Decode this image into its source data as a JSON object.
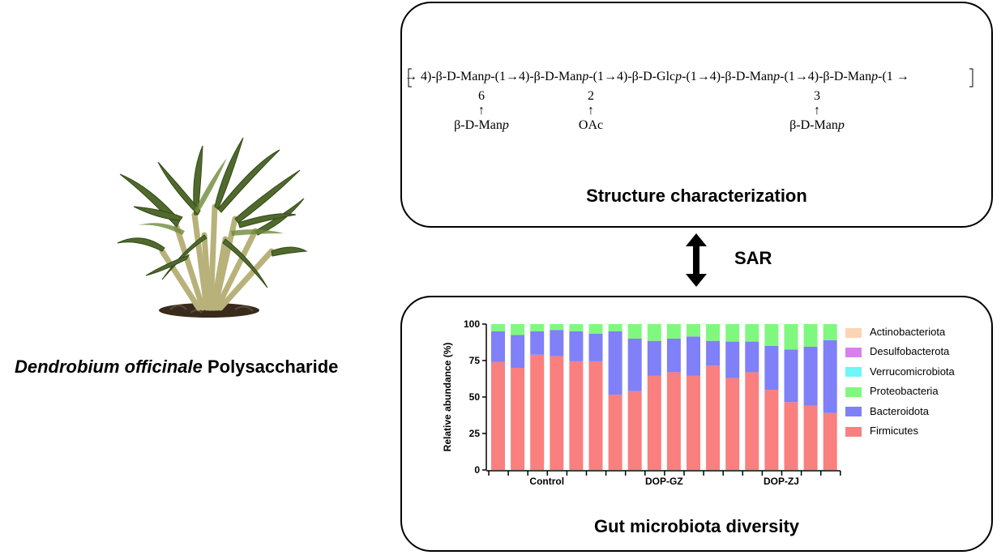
{
  "plant_caption": {
    "italic": "Dendrobium officinale",
    "rest": " Polysaccharide"
  },
  "sar_label": "SAR",
  "structure": {
    "title": "Structure characterization",
    "formula_parts": [
      {
        "t": "→ 4)-β-D-Man",
        "i": false
      },
      {
        "t": "p",
        "i": true
      },
      {
        "t": "-(1→4)-β-D-Man",
        "i": false
      },
      {
        "t": "p",
        "i": true
      },
      {
        "t": "-(1→4)-β-D-Glc",
        "i": false
      },
      {
        "t": "p",
        "i": true
      },
      {
        "t": "-(1→4)-β-D-Man",
        "i": false
      },
      {
        "t": "p",
        "i": true
      },
      {
        "t": "-(1→4)-β-D-Man",
        "i": false
      },
      {
        "t": "p",
        "i": true
      },
      {
        "t": "-(1 →",
        "i": false
      }
    ],
    "substituents": [
      {
        "position": "6",
        "arrow": "↑",
        "group": "β-D-Man",
        "group_italic": "p"
      },
      {
        "position": "2",
        "arrow": "↑",
        "group": "OAc",
        "group_italic": ""
      },
      {
        "position": "3",
        "arrow": "↑",
        "group": "β-D-Man",
        "group_italic": "p"
      }
    ]
  },
  "gut": {
    "title": "Gut microbiota diversity"
  },
  "colors": {
    "Actinobacteriota": "#fcd5b5",
    "Desulfobacterota": "#d980f0",
    "Verrucomicrobiota": "#6ff6f6",
    "Proteobacteria": "#80f880",
    "Bacteroidota": "#8080f8",
    "Firmicutes": "#fa7f7f"
  },
  "chart_data": {
    "type": "bar",
    "stacked": true,
    "ylabel": "Relative abundance (%)",
    "ylim": [
      0,
      100
    ],
    "yticks": [
      0,
      25,
      50,
      75,
      100
    ],
    "groups": [
      {
        "label": "Control",
        "bars": 6
      },
      {
        "label": "DOP-GZ",
        "bars": 6
      },
      {
        "label": "DOP-ZJ",
        "bars": 6
      }
    ],
    "series": [
      {
        "name": "Firmicutes",
        "values": [
          74,
          70,
          79,
          78,
          74.5,
          74.5,
          51.5,
          54,
          64.5,
          67,
          64.5,
          71.5,
          63,
          67,
          55,
          46.5,
          44,
          39
        ]
      },
      {
        "name": "Bacteroidota",
        "values": [
          21,
          22.5,
          16,
          18,
          20.5,
          19,
          43.5,
          36,
          24,
          23,
          27,
          17,
          25,
          21,
          30,
          36,
          40.5,
          50
        ]
      },
      {
        "name": "Proteobacteria",
        "values": [
          5,
          7.5,
          5,
          4,
          5,
          6.5,
          5,
          10,
          11.5,
          10,
          8.5,
          11.5,
          12,
          12,
          15,
          17.5,
          15.5,
          11
        ]
      },
      {
        "name": "Verrucomicrobiota",
        "values": [
          0,
          0,
          0,
          0,
          0,
          0,
          0,
          0,
          0,
          0,
          0,
          0,
          0,
          0,
          0,
          0,
          0,
          0
        ]
      },
      {
        "name": "Desulfobacterota",
        "values": [
          0,
          0,
          0,
          0,
          0,
          0,
          0,
          0,
          0,
          0,
          0,
          0,
          0,
          0,
          0,
          0,
          0,
          0
        ]
      },
      {
        "name": "Actinobacteriota",
        "values": [
          0,
          0,
          0,
          0,
          0,
          0,
          0,
          0,
          0,
          0,
          0,
          0,
          0,
          0,
          0,
          0,
          0,
          0
        ]
      }
    ],
    "legend": [
      "Actinobacteriota",
      "Desulfobacterota",
      "Verrucomicrobiota",
      "Proteobacteria",
      "Bacteroidota",
      "Firmicutes"
    ],
    "legend_position": "right"
  }
}
